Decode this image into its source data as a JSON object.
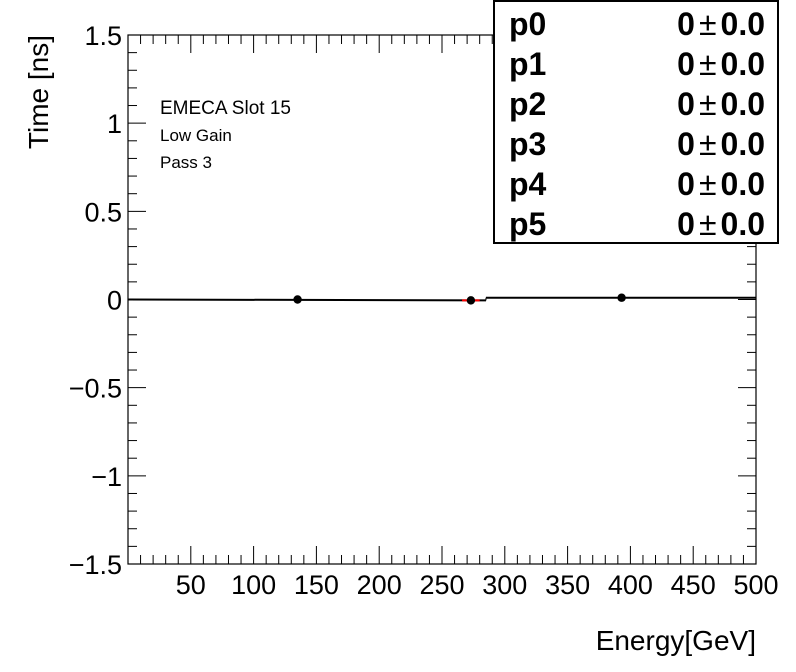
{
  "chart_data": {
    "type": "scatter",
    "xlabel": "Energy[GeV]",
    "ylabel": "Time [ns]",
    "xlim": [
      0,
      500
    ],
    "ylim": [
      -1.5,
      1.5
    ],
    "x_ticks": [
      "50",
      "100",
      "150",
      "200",
      "250",
      "300",
      "350",
      "400",
      "450",
      "500"
    ],
    "y_ticks": [
      "1.5",
      "1",
      "0.5",
      "0",
      "−0.5",
      "−1",
      "−1.5"
    ],
    "points": [
      {
        "x": 135,
        "y": 0.0,
        "xerr": 0,
        "yerr": 0
      },
      {
        "x": 273,
        "y": -0.005,
        "xerr": 7,
        "yerr": 0
      },
      {
        "x": 393,
        "y": 0.01,
        "xerr": 0,
        "yerr": 0
      }
    ],
    "fit_segments": [
      {
        "x": [
          0,
          285
        ],
        "y": [
          0.0,
          -0.005
        ]
      },
      {
        "x": [
          285,
          500
        ],
        "y": [
          0.01,
          0.01
        ]
      }
    ],
    "annotations": [
      "EMECA Slot 15",
      "Low Gain",
      "Pass 3"
    ],
    "stats": [
      {
        "name": "p0",
        "value": "0",
        "pm": "±",
        "error": "0.0"
      },
      {
        "name": "p1",
        "value": "0",
        "pm": "±",
        "error": "0.0"
      },
      {
        "name": "p2",
        "value": "0",
        "pm": "±",
        "error": "0.0"
      },
      {
        "name": "p3",
        "value": "0",
        "pm": "±",
        "error": "0.0"
      },
      {
        "name": "p4",
        "value": "0",
        "pm": "±",
        "error": "0.0"
      },
      {
        "name": "p5",
        "value": "0",
        "pm": "±",
        "error": "0.0"
      }
    ],
    "colors": {
      "points": "#000000",
      "fit": "#000000",
      "error_bar": "#ff0000"
    }
  }
}
